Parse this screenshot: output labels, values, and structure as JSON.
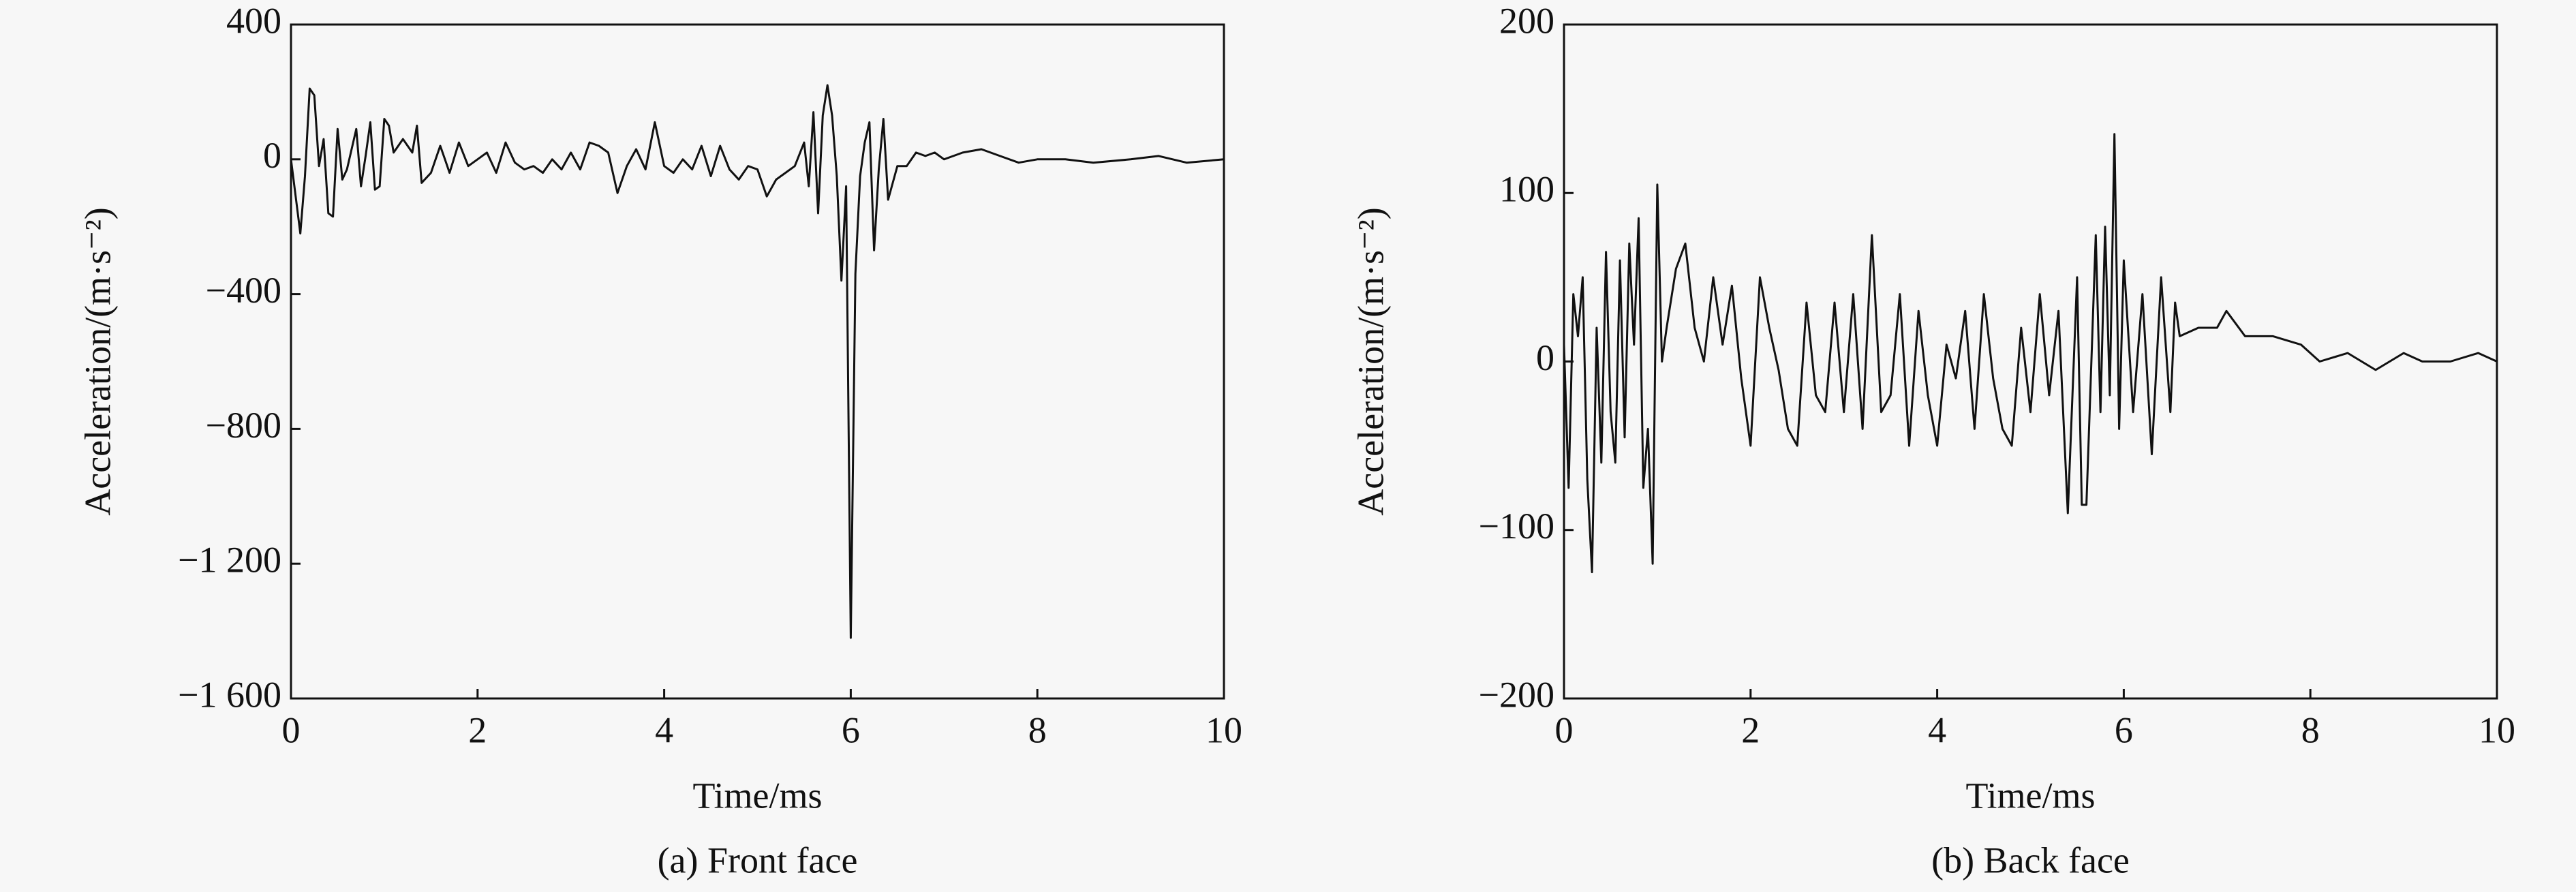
{
  "chart_data": [
    {
      "type": "line",
      "caption": "(a) Front face",
      "x_label": "Time/ms",
      "y_label": "Acceleration/(m·s⁻²)",
      "xlim": [
        0,
        10
      ],
      "xticks": [
        0,
        2,
        4,
        6,
        8,
        10
      ],
      "ylim": [
        -1600,
        400
      ],
      "yticks": [
        {
          "value": -1600,
          "label": "−1 600"
        },
        {
          "value": -1200,
          "label": "−1 200"
        },
        {
          "value": -800,
          "label": "−800"
        },
        {
          "value": -400,
          "label": "−400"
        },
        0,
        400
      ],
      "series": [
        {
          "color": "#111111",
          "x": [
            0,
            0.1,
            0.15,
            0.2,
            0.25,
            0.3,
            0.35,
            0.4,
            0.45,
            0.5,
            0.55,
            0.6,
            0.7,
            0.75,
            0.8,
            0.85,
            0.9,
            0.95,
            1.0,
            1.05,
            1.1,
            1.2,
            1.3,
            1.35,
            1.4,
            1.5,
            1.6,
            1.65,
            1.7,
            1.8,
            1.9,
            2.0,
            2.1,
            2.2,
            2.3,
            2.4,
            2.5,
            2.6,
            2.7,
            2.8,
            2.9,
            3.0,
            3.1,
            3.2,
            3.3,
            3.4,
            3.5,
            3.6,
            3.7,
            3.8,
            3.9,
            4.0,
            4.1,
            4.2,
            4.3,
            4.4,
            4.5,
            4.6,
            4.7,
            4.8,
            4.9,
            5.0,
            5.1,
            5.2,
            5.3,
            5.4,
            5.5,
            5.55,
            5.6,
            5.65,
            5.7,
            5.75,
            5.8,
            5.85,
            5.9,
            5.95,
            6.0,
            6.05,
            6.1,
            6.15,
            6.2,
            6.25,
            6.3,
            6.35,
            6.4,
            6.5,
            6.6,
            6.7,
            6.8,
            6.9,
            7.0,
            7.2,
            7.4,
            7.6,
            7.8,
            8.0,
            8.3,
            8.6,
            9.0,
            9.3,
            9.6,
            10.0
          ],
          "values": [
            0,
            -220,
            -50,
            210,
            190,
            -20,
            60,
            -160,
            -170,
            90,
            -60,
            -30,
            90,
            -80,
            10,
            110,
            -90,
            -80,
            120,
            100,
            20,
            60,
            20,
            100,
            -70,
            -40,
            40,
            0,
            -40,
            50,
            -20,
            0,
            20,
            -40,
            50,
            -10,
            -30,
            -20,
            -40,
            0,
            -30,
            20,
            -30,
            50,
            40,
            20,
            -100,
            -20,
            30,
            -30,
            110,
            -20,
            -40,
            0,
            -30,
            40,
            -50,
            40,
            -30,
            -60,
            -20,
            -30,
            -110,
            -60,
            -40,
            -20,
            50,
            -80,
            140,
            -160,
            130,
            220,
            130,
            -50,
            -360,
            -80,
            -1420,
            -340,
            -50,
            50,
            110,
            -270,
            -30,
            120,
            -120,
            -20,
            -20,
            20,
            10,
            20,
            0,
            20,
            30,
            10,
            -10,
            0,
            0,
            -10,
            0,
            10,
            -10,
            0
          ]
        }
      ]
    },
    {
      "type": "line",
      "caption": "(b) Back face",
      "x_label": "Time/ms",
      "y_label": "Acceleration/(m·s⁻²)",
      "xlim": [
        0,
        10
      ],
      "xticks": [
        0,
        2,
        4,
        6,
        8,
        10
      ],
      "ylim": [
        -200,
        200
      ],
      "yticks": [
        {
          "value": -200,
          "label": "−200"
        },
        {
          "value": -100,
          "label": "−100"
        },
        0,
        100,
        200
      ],
      "series": [
        {
          "color": "#111111",
          "x": [
            0,
            0.05,
            0.1,
            0.15,
            0.2,
            0.25,
            0.3,
            0.35,
            0.4,
            0.45,
            0.5,
            0.55,
            0.6,
            0.65,
            0.7,
            0.75,
            0.8,
            0.85,
            0.9,
            0.95,
            1.0,
            1.05,
            1.1,
            1.2,
            1.3,
            1.4,
            1.5,
            1.6,
            1.7,
            1.8,
            1.9,
            2.0,
            2.1,
            2.2,
            2.3,
            2.4,
            2.5,
            2.6,
            2.7,
            2.8,
            2.9,
            3.0,
            3.1,
            3.2,
            3.3,
            3.4,
            3.5,
            3.6,
            3.7,
            3.8,
            3.9,
            4.0,
            4.1,
            4.2,
            4.3,
            4.4,
            4.5,
            4.6,
            4.7,
            4.8,
            4.9,
            5.0,
            5.1,
            5.2,
            5.3,
            5.4,
            5.5,
            5.55,
            5.6,
            5.7,
            5.75,
            5.8,
            5.85,
            5.9,
            5.95,
            6.0,
            6.1,
            6.2,
            6.3,
            6.4,
            6.5,
            6.55,
            6.6,
            6.8,
            7.0,
            7.1,
            7.3,
            7.6,
            7.9,
            8.1,
            8.4,
            8.7,
            9.0,
            9.2,
            9.5,
            9.8,
            10.0
          ],
          "values": [
            10,
            -75,
            40,
            15,
            50,
            -70,
            -125,
            20,
            -60,
            65,
            -30,
            -60,
            60,
            -45,
            70,
            10,
            85,
            -75,
            -40,
            -120,
            105,
            0,
            20,
            55,
            70,
            20,
            0,
            50,
            10,
            45,
            -10,
            -50,
            50,
            20,
            -5,
            -40,
            -50,
            35,
            -20,
            -30,
            35,
            -30,
            40,
            -40,
            75,
            -30,
            -20,
            40,
            -50,
            30,
            -20,
            -50,
            10,
            -10,
            30,
            -40,
            40,
            -10,
            -40,
            -50,
            20,
            -30,
            40,
            -20,
            30,
            -90,
            50,
            -85,
            -85,
            75,
            -30,
            80,
            -20,
            135,
            -40,
            60,
            -30,
            40,
            -55,
            50,
            -30,
            35,
            15,
            20,
            20,
            30,
            15,
            15,
            10,
            0,
            5,
            -5,
            5,
            0,
            0,
            5,
            0
          ]
        }
      ]
    }
  ]
}
